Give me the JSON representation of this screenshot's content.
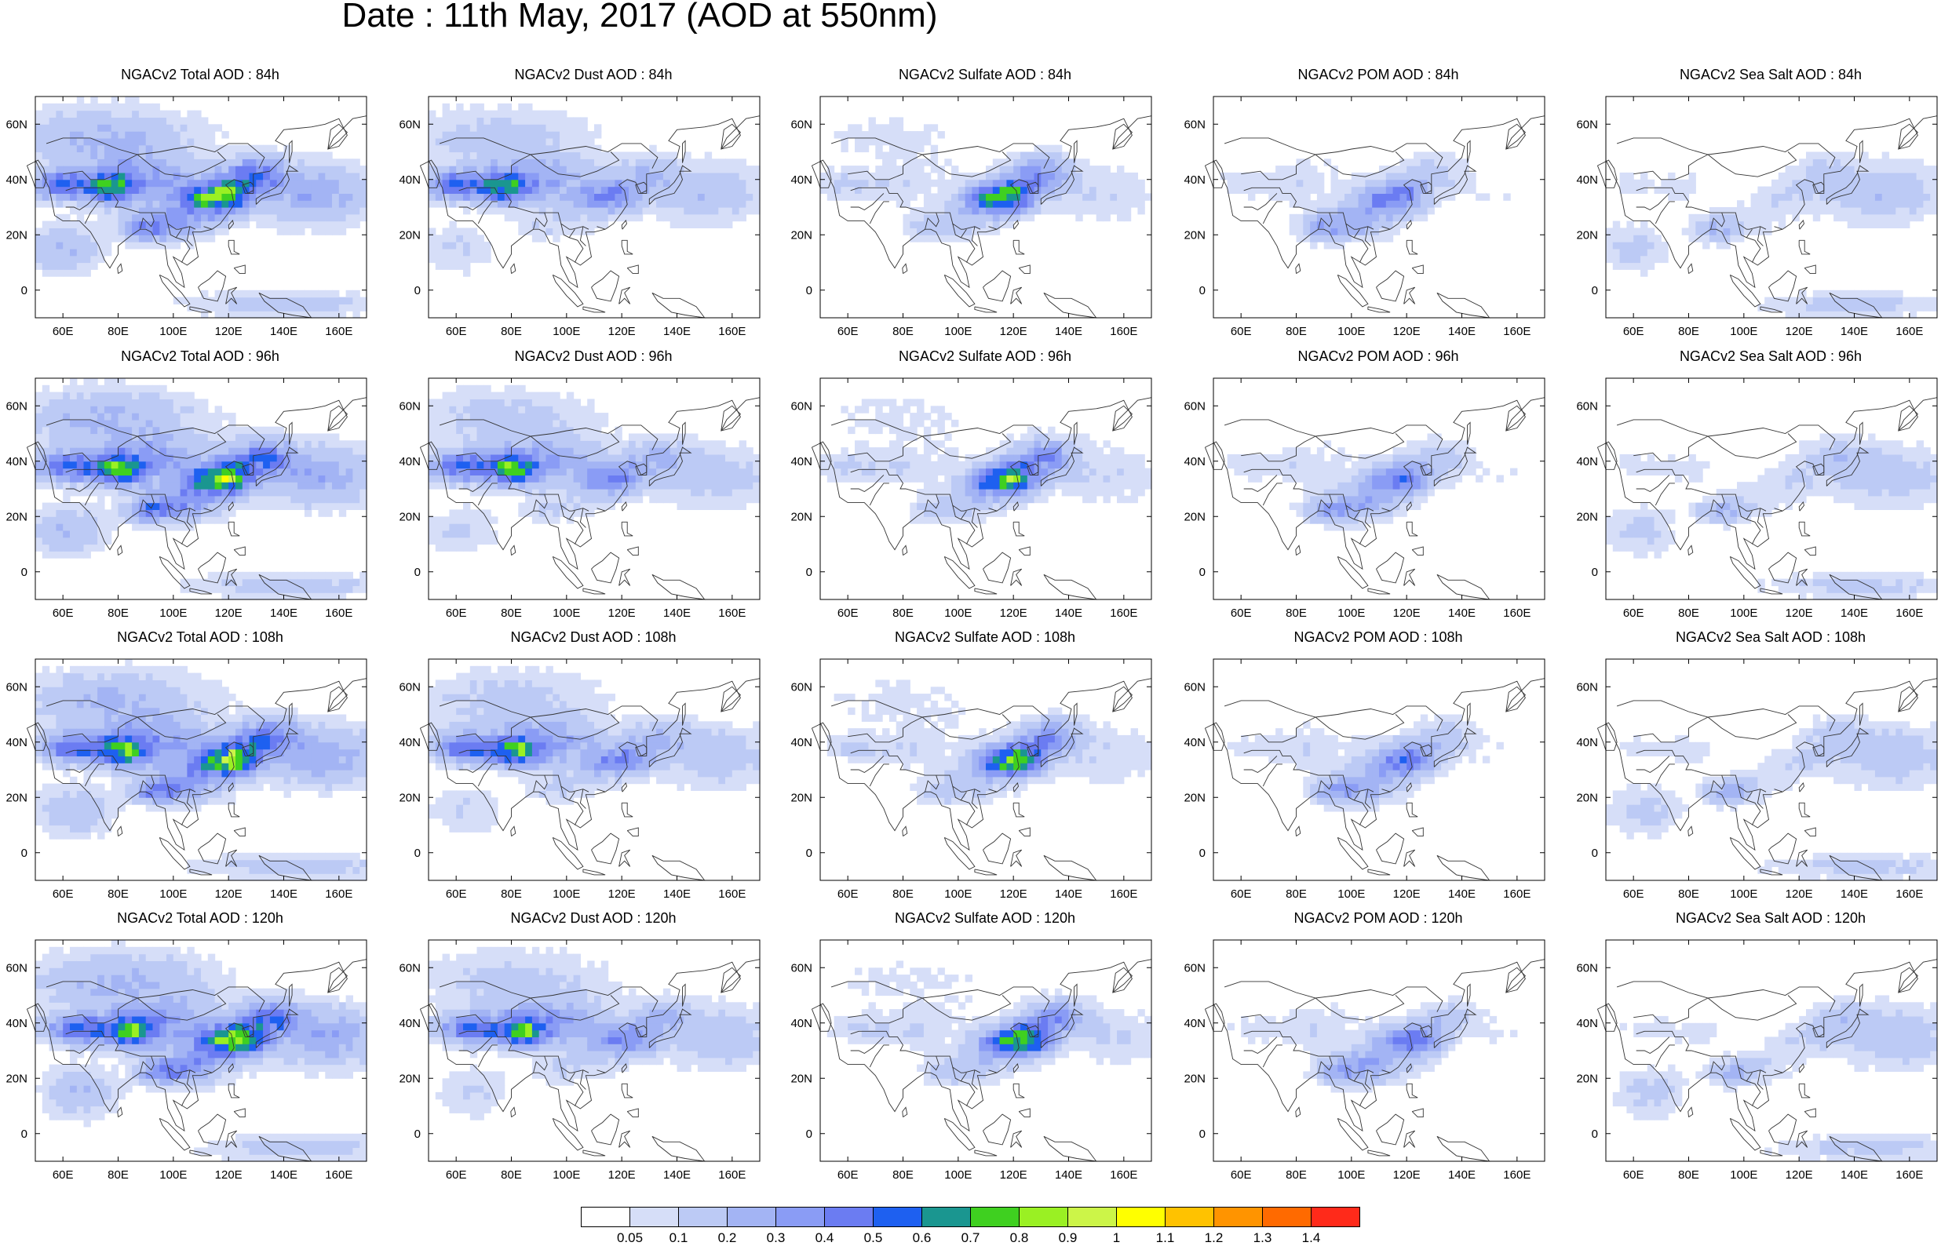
{
  "title": "Date : 11th May, 2017 (AOD at 550nm)",
  "axes": {
    "lon_ticks": [
      60,
      80,
      100,
      120,
      140,
      160
    ],
    "lon_labels": [
      "60E",
      "80E",
      "100E",
      "120E",
      "140E",
      "160E"
    ],
    "lat_ticks": [
      60,
      40,
      20,
      0
    ],
    "lat_labels": [
      "60N",
      "40N",
      "20N",
      "0"
    ],
    "lon_range": [
      50,
      170
    ],
    "lat_range": [
      -10,
      70
    ]
  },
  "columns": [
    {
      "species": "total",
      "intensity": 1.0
    },
    {
      "species": "dust",
      "intensity": 0.75
    },
    {
      "species": "sulfate",
      "intensity": 0.35
    },
    {
      "species": "pom",
      "intensity": 0.25
    },
    {
      "species": "seasalt",
      "intensity": 0.3
    }
  ],
  "panels": [
    {
      "title": "NGACv2 Total AOD : 84h"
    },
    {
      "title": "NGACv2 Dust AOD : 84h"
    },
    {
      "title": "NGACv2 Sulfate AOD : 84h"
    },
    {
      "title": "NGACv2 POM AOD : 84h"
    },
    {
      "title": "NGACv2 Sea Salt AOD : 84h"
    },
    {
      "title": "NGACv2 Total AOD : 96h"
    },
    {
      "title": "NGACv2 Dust AOD : 96h"
    },
    {
      "title": "NGACv2 Sulfate AOD : 96h"
    },
    {
      "title": "NGACv2 POM AOD : 96h"
    },
    {
      "title": "NGACv2 Sea Salt AOD : 96h"
    },
    {
      "title": "NGACv2 Total AOD : 108h"
    },
    {
      "title": "NGACv2 Dust AOD : 108h"
    },
    {
      "title": "NGACv2 Sulfate AOD : 108h"
    },
    {
      "title": "NGACv2 POM AOD : 108h"
    },
    {
      "title": "NGACv2 Sea Salt AOD : 108h"
    },
    {
      "title": "NGACv2 Total AOD : 120h"
    },
    {
      "title": "NGACv2 Dust AOD : 120h"
    },
    {
      "title": "NGACv2 Sulfate AOD : 120h"
    },
    {
      "title": "NGACv2 POM AOD : 120h"
    },
    {
      "title": "NGACv2 Sea Salt  AOD : 120h"
    }
  ],
  "colorbar": {
    "labels": [
      "0.05",
      "0.1",
      "0.2",
      "0.3",
      "0.4",
      "0.5",
      "0.6",
      "0.7",
      "0.8",
      "0.9",
      "1",
      "1.1",
      "1.2",
      "1.3",
      "1.4"
    ],
    "colors": [
      "#ffffff",
      "#d6def8",
      "#bccaf5",
      "#a3b4f4",
      "#8a9cf5",
      "#6b7cf2",
      "#1e60f0",
      "#1a9690",
      "#3fd020",
      "#9af023",
      "#ccf548",
      "#ffff00",
      "#ffc200",
      "#ff9400",
      "#ff6a00",
      "#ff2a1a"
    ]
  }
}
